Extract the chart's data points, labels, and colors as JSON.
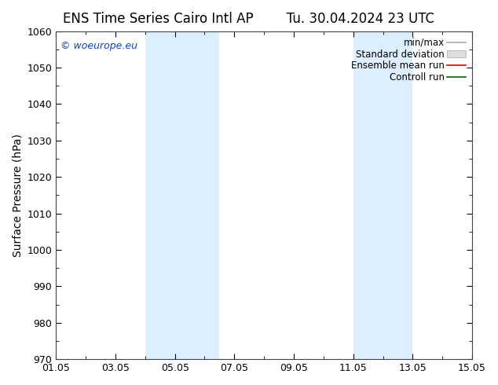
{
  "title_left": "ENS Time Series Cairo Intl AP",
  "title_right": "Tu. 30.04.2024 23 UTC",
  "ylabel": "Surface Pressure (hPa)",
  "ylim": [
    970,
    1060
  ],
  "yticks": [
    970,
    980,
    990,
    1000,
    1010,
    1020,
    1030,
    1040,
    1050,
    1060
  ],
  "xlim_start": 0,
  "xlim_end": 14,
  "xtick_positions": [
    0,
    2,
    4,
    6,
    8,
    10,
    12,
    14
  ],
  "xtick_labels": [
    "01.05",
    "03.05",
    "05.05",
    "07.05",
    "09.05",
    "11.05",
    "13.05",
    "15.05"
  ],
  "shaded_bands": [
    {
      "xmin": 3.0,
      "xmax": 5.5
    },
    {
      "xmin": 10.0,
      "xmax": 12.0
    }
  ],
  "band_color": "#ddeeff",
  "watermark": "© woeurope.eu",
  "watermark_color": "#1144bb",
  "background_color": "#ffffff",
  "title_fontsize": 12,
  "axis_fontsize": 10,
  "tick_fontsize": 9,
  "legend_fontsize": 8.5
}
